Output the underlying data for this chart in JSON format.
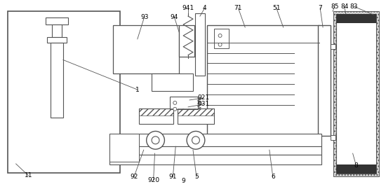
{
  "bg_color": "#ffffff",
  "lc": "#555555",
  "lw": 0.8
}
